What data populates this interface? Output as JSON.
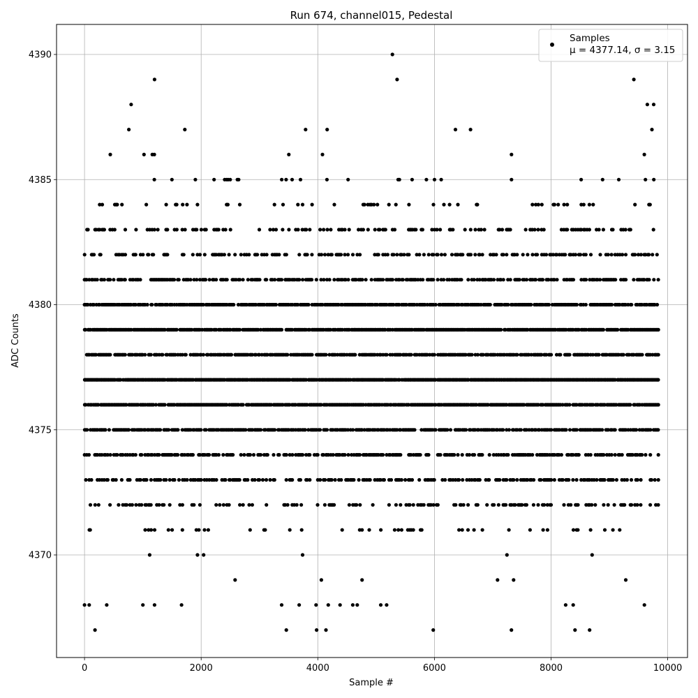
{
  "chart_data": {
    "type": "scatter",
    "title": "Run 674, channel015, Pedestal",
    "xlabel": "Sample #",
    "ylabel": "ADC Counts",
    "xlim": [
      -480,
      10340
    ],
    "ylim": [
      4365.9,
      4391.2
    ],
    "xticks": [
      0,
      2000,
      4000,
      6000,
      8000,
      10000
    ],
    "xtick_labels": [
      "0",
      "2000",
      "4000",
      "6000",
      "8000",
      "10000"
    ],
    "yticks": [
      4370,
      4375,
      4380,
      4385,
      4390
    ],
    "ytick_labels": [
      "4370",
      "4375",
      "4380",
      "4385",
      "4390"
    ],
    "grid": true,
    "legend": {
      "position": "top-right",
      "entries": [
        "Samples",
        "μ = 4377.14, σ = 3.15"
      ]
    },
    "series": [
      {
        "name": "Samples",
        "color": "#000000",
        "n_samples": 10000,
        "level_density": {
          "4367": 0.004,
          "4368": 0.007,
          "4369": 0.018,
          "4370": 0.025,
          "4371": 0.1,
          "4372": 0.26,
          "4373": 0.42,
          "4374": 0.52,
          "4375": 0.72,
          "4376": 0.88,
          "4377": 0.96,
          "4378": 0.72,
          "4379": 0.88,
          "4380": 0.8,
          "4381": 0.56,
          "4382": 0.34,
          "4383": 0.24,
          "4384": 0.12,
          "4385": 0.06,
          "4386": 0.016,
          "4387": 0.008,
          "4388": 0.005,
          "4389": 0.002,
          "4390": 0.001
        },
        "outliers": [
          [
            180,
            4367
          ],
          [
            3460,
            4367
          ],
          [
            3980,
            4367
          ],
          [
            4140,
            4367
          ],
          [
            5980,
            4367
          ],
          [
            7320,
            4367
          ],
          [
            8410,
            4367
          ],
          [
            0,
            4368
          ],
          [
            80,
            4368
          ],
          [
            380,
            4368
          ],
          [
            1200,
            4368
          ],
          [
            3380,
            4368
          ],
          [
            3680,
            4368
          ],
          [
            3970,
            4368
          ],
          [
            4180,
            4368
          ],
          [
            4600,
            4368
          ],
          [
            5080,
            4368
          ],
          [
            5180,
            4368
          ],
          [
            8250,
            4368
          ],
          [
            8380,
            4368
          ],
          [
            9600,
            4368
          ],
          [
            5280,
            4390
          ],
          [
            5360,
            4389
          ],
          [
            9420,
            4389
          ],
          [
            800,
            4388
          ],
          [
            9650,
            4388
          ],
          [
            9760,
            4388
          ],
          [
            760,
            4387
          ],
          [
            1720,
            4387
          ],
          [
            3790,
            4387
          ],
          [
            4160,
            4387
          ],
          [
            6360,
            4387
          ],
          [
            9730,
            4387
          ]
        ]
      }
    ]
  }
}
